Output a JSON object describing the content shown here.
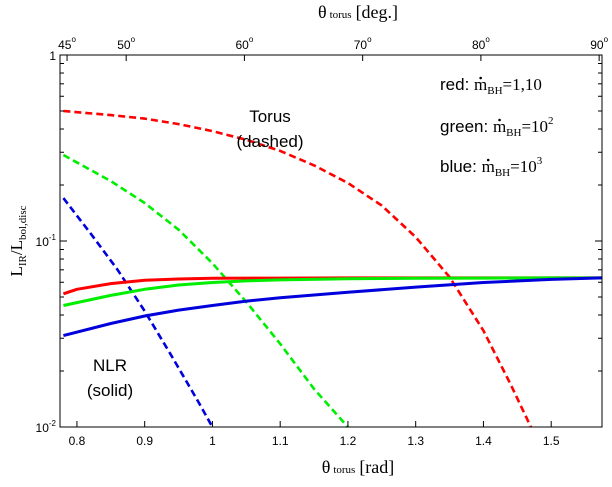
{
  "chart_data": {
    "type": "line",
    "xlabel": {
      "symbol": "θ",
      "sub": "torus",
      "unit": "[rad]"
    },
    "top_xlabel": {
      "symbol": "θ",
      "sub": "torus",
      "unit": "[deg.]"
    },
    "ylabel": {
      "main": "L",
      "sub1": "IR",
      "slash": "/L",
      "sub2": "bol,disc"
    },
    "xlim": [
      0.775,
      1.575
    ],
    "ylim": [
      0.01,
      1
    ],
    "yscale": "log",
    "x_ticks": [
      0.8,
      0.9,
      1,
      1.1,
      1.2,
      1.3,
      1.4,
      1.5
    ],
    "x_tick_labels": [
      "0.8",
      "0.9",
      "1",
      "1.1",
      "1.2",
      "1.3",
      "1.4",
      "1.5"
    ],
    "top_ticks_deg": [
      45,
      50,
      60,
      70,
      80,
      90
    ],
    "top_tick_labels": [
      "45",
      "50",
      "60",
      "70",
      "80",
      "90"
    ],
    "top_tick_degree_mark": "o",
    "y_tick_labels": [
      {
        "value": 1,
        "base": "1",
        "exp": ""
      },
      {
        "value": 0.1,
        "base": "10",
        "exp": "-1"
      },
      {
        "value": 0.01,
        "base": "10",
        "exp": "-2"
      }
    ],
    "annotations": {
      "torus_line1": "Torus",
      "torus_line2": "(dashed)",
      "nlr_line1": "NLR",
      "nlr_line2": "(solid)",
      "legend": [
        {
          "prefix": "red: ",
          "sym": "m",
          "sub": "BH",
          "suffix": "=1,10",
          "exp": ""
        },
        {
          "prefix": "green: ",
          "sym": "m",
          "sub": "BH",
          "suffix": "=10",
          "exp": "2"
        },
        {
          "prefix": "blue: ",
          "sym": "m",
          "sub": "BH",
          "suffix": "=10",
          "exp": "3"
        }
      ]
    },
    "series": [
      {
        "color": "#ff0000",
        "style": "dashed",
        "x": [
          0.78,
          0.85,
          0.9,
          0.95,
          1.0,
          1.05,
          1.1,
          1.15,
          1.2,
          1.25,
          1.3,
          1.35,
          1.4,
          1.44,
          1.47
        ],
        "y": [
          0.5,
          0.475,
          0.455,
          0.425,
          0.39,
          0.35,
          0.305,
          0.255,
          0.205,
          0.155,
          0.105,
          0.064,
          0.033,
          0.017,
          0.01
        ]
      },
      {
        "color": "#00ee00",
        "style": "dashed",
        "x": [
          0.78,
          0.85,
          0.9,
          0.95,
          1.0,
          1.05,
          1.1,
          1.15,
          1.2
        ],
        "y": [
          0.29,
          0.21,
          0.16,
          0.115,
          0.076,
          0.047,
          0.028,
          0.016,
          0.01
        ]
      },
      {
        "color": "#0000dd",
        "style": "dashed",
        "x": [
          0.78,
          0.82,
          0.86,
          0.9,
          0.94,
          0.98,
          1.0
        ],
        "y": [
          0.17,
          0.11,
          0.07,
          0.042,
          0.024,
          0.0135,
          0.01
        ]
      },
      {
        "color": "#ff0000",
        "style": "solid",
        "x": [
          0.78,
          0.8,
          0.85,
          0.9,
          0.95,
          1.0,
          1.1,
          1.2,
          1.3,
          1.4,
          1.5,
          1.575
        ],
        "y": [
          0.052,
          0.055,
          0.059,
          0.0615,
          0.0625,
          0.063,
          0.0632,
          0.0633,
          0.0633,
          0.0633,
          0.0633,
          0.0633
        ]
      },
      {
        "color": "#00ee00",
        "style": "solid",
        "x": [
          0.78,
          0.85,
          0.9,
          0.95,
          1.0,
          1.05,
          1.1,
          1.2,
          1.3,
          1.4,
          1.5,
          1.575
        ],
        "y": [
          0.045,
          0.051,
          0.055,
          0.058,
          0.0598,
          0.061,
          0.0618,
          0.0626,
          0.063,
          0.0632,
          0.0633,
          0.0633
        ]
      },
      {
        "color": "#0000dd",
        "style": "solid",
        "x": [
          0.78,
          0.85,
          0.9,
          0.95,
          1.0,
          1.05,
          1.1,
          1.2,
          1.3,
          1.4,
          1.5,
          1.575
        ],
        "y": [
          0.031,
          0.036,
          0.0395,
          0.0425,
          0.045,
          0.0475,
          0.0495,
          0.053,
          0.0565,
          0.0598,
          0.0622,
          0.0633
        ]
      }
    ]
  }
}
